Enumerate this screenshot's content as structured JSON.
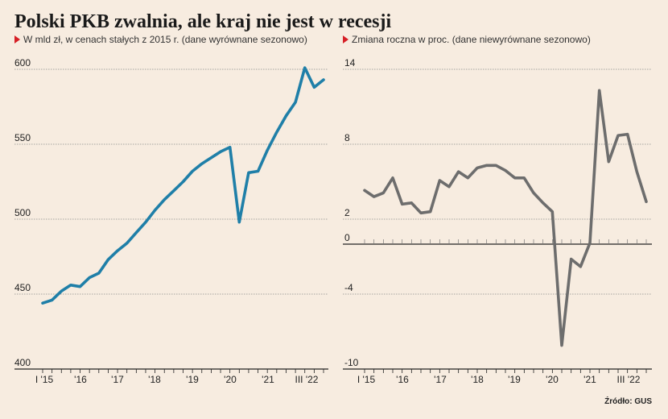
{
  "title": "Polski PKB zwalnia, ale kraj nie jest w recesji",
  "source": "Źródło: GUS",
  "chart_data": [
    {
      "type": "line",
      "subtitle": "W mld zł, w cenach stałych z 2015 r. (dane wyrównane sezonowo)",
      "x_tick_labels": [
        "I '15",
        "'16",
        "'17",
        "'18",
        "'19",
        "'20",
        "'21",
        "III '22"
      ],
      "ylim": [
        400,
        600
      ],
      "y_ticks": [
        400,
        450,
        500,
        550,
        600
      ],
      "grid": true,
      "color": "#1f7fa8",
      "series": [
        {
          "values": [
            444,
            446,
            452,
            456,
            455,
            461,
            464,
            473,
            479,
            484,
            491,
            498,
            506,
            513,
            519,
            525,
            532,
            537,
            541,
            545,
            548,
            498,
            531,
            532,
            546,
            558,
            569,
            578,
            601,
            588,
            593
          ]
        }
      ]
    },
    {
      "type": "line",
      "subtitle": "Zmiana roczna w proc. (dane niewyrównane sezonowo)",
      "x_tick_labels": [
        "I '15",
        "'16",
        "'17",
        "'18",
        "'19",
        "'20",
        "'21",
        "III '22"
      ],
      "ylim": [
        -10,
        14
      ],
      "y_ticks": [
        -10,
        -4,
        0,
        2,
        8,
        14
      ],
      "grid": true,
      "color": "#6d6d6d",
      "series": [
        {
          "values": [
            4.3,
            3.8,
            4.1,
            5.3,
            3.2,
            3.3,
            2.5,
            2.6,
            5.1,
            4.6,
            5.8,
            5.3,
            6.1,
            6.3,
            6.3,
            5.9,
            5.3,
            5.3,
            4.1,
            3.3,
            2.6,
            -8.1,
            -1.2,
            -1.8,
            0.1,
            12.3,
            6.6,
            8.7,
            8.8,
            5.8,
            3.4
          ]
        }
      ]
    }
  ]
}
